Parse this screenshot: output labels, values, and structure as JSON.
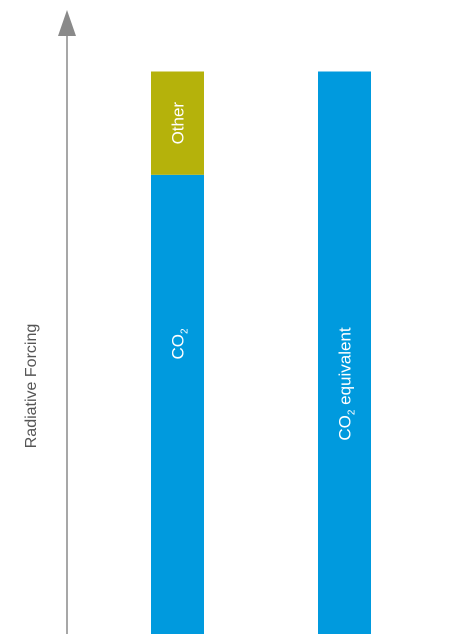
{
  "chart_data": {
    "type": "bar",
    "stacked": true,
    "ylabel": "Radiative Forcing",
    "yticks": false,
    "grid": false,
    "ylim": [
      0,
      100
    ],
    "colors": {
      "co2": "#009ADE",
      "other": "#B5B20B",
      "axis": "#8A8A8A"
    },
    "bars": [
      {
        "segments": [
          {
            "key": "co2",
            "label_main": "CO",
            "label_sub": "2",
            "label_rest": "",
            "value": 80,
            "color": "#009ADE"
          },
          {
            "key": "other",
            "label_main": "Other",
            "label_sub": "",
            "label_rest": "",
            "value": 18,
            "color": "#B5B20B"
          }
        ]
      },
      {
        "segments": [
          {
            "key": "co2-eq",
            "label_main": "CO",
            "label_sub": "2",
            "label_rest": " equivalent",
            "value": 98,
            "color": "#009ADE"
          }
        ]
      }
    ]
  }
}
